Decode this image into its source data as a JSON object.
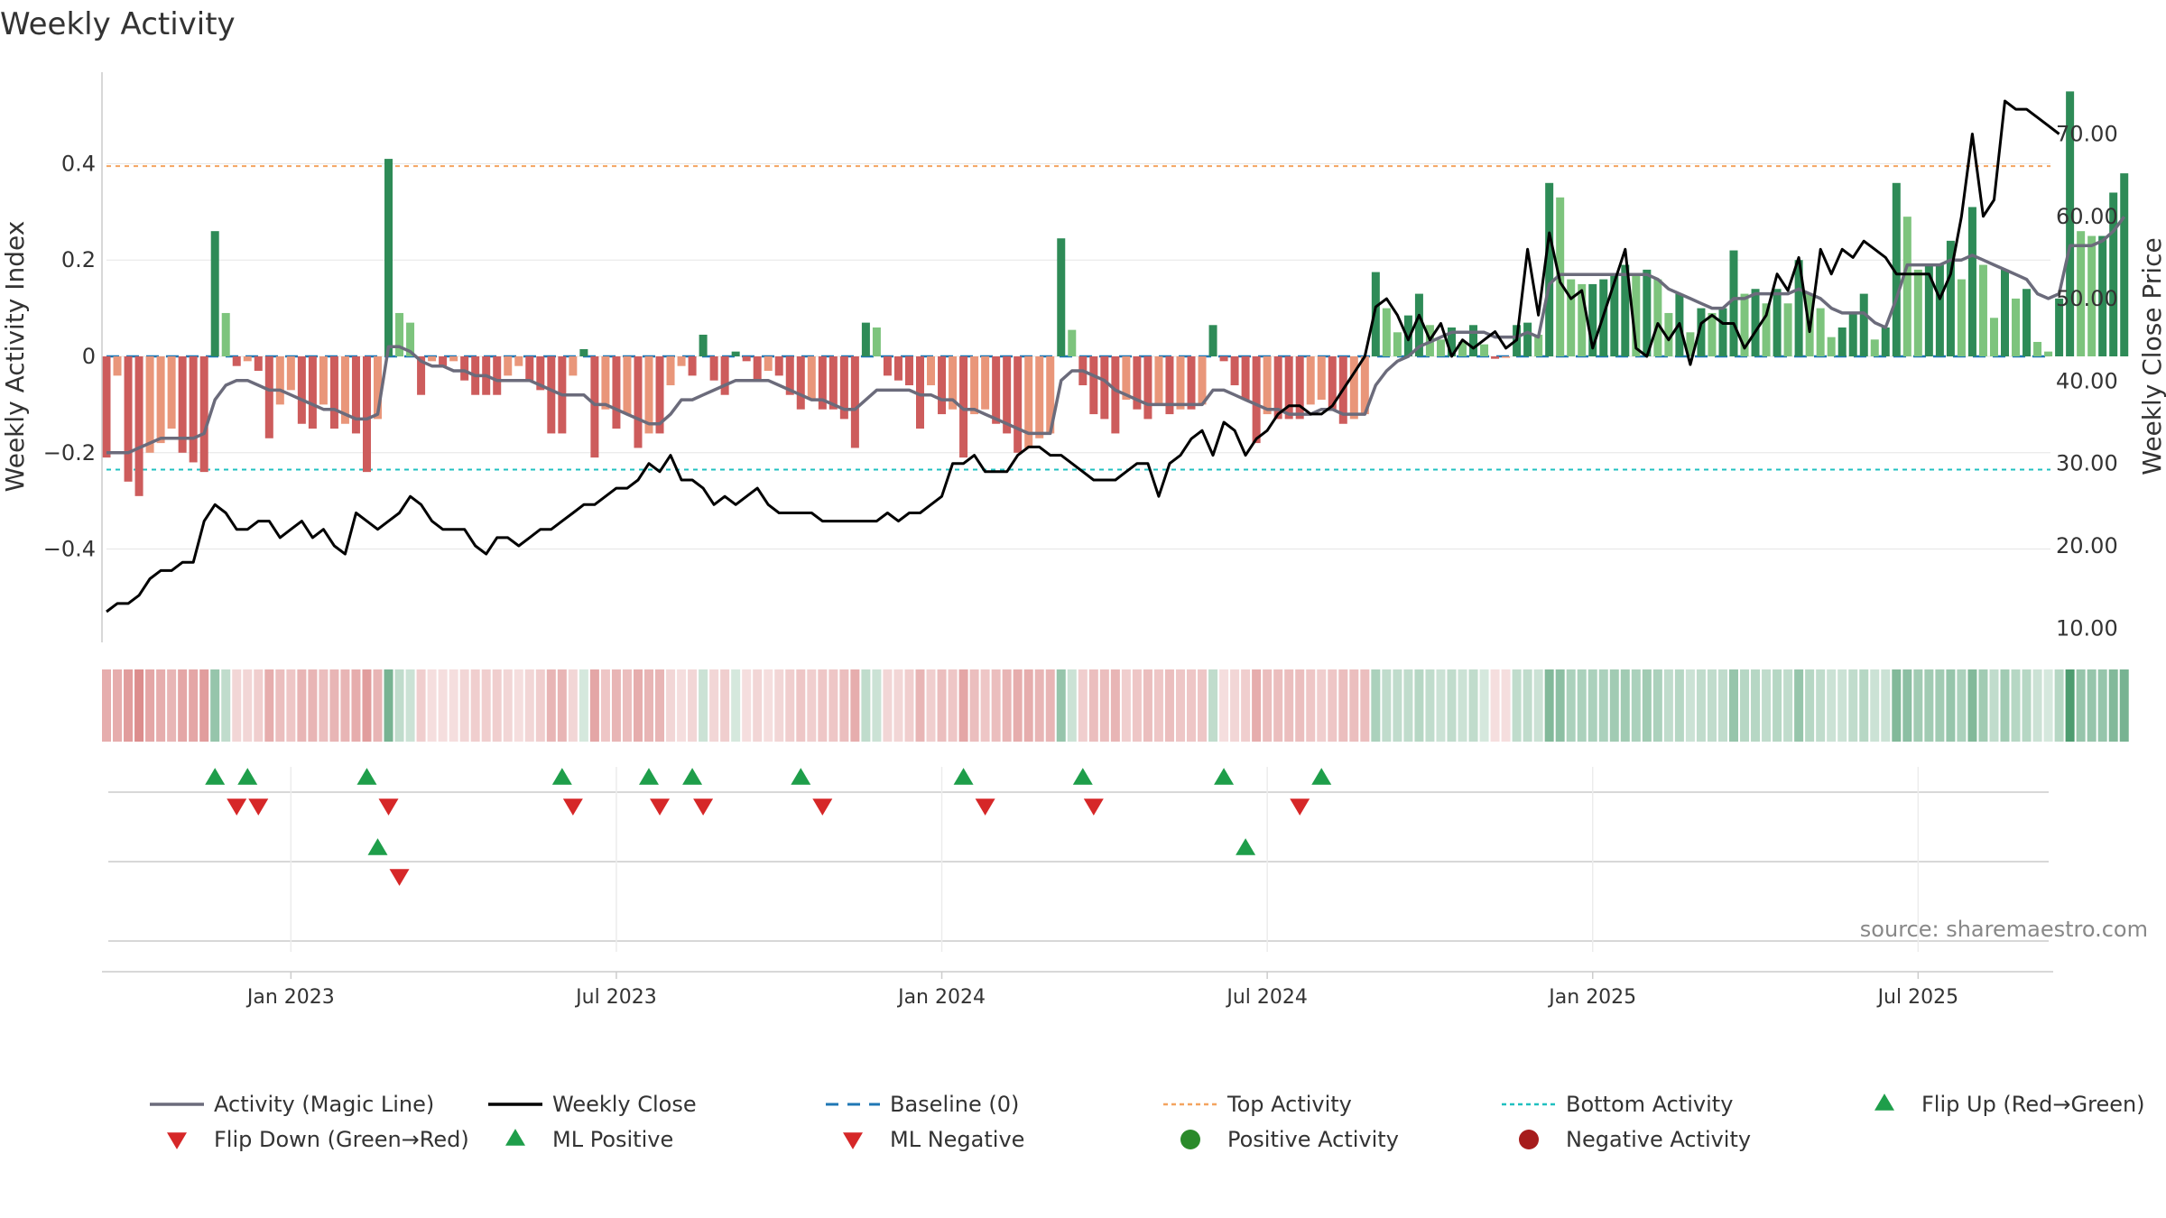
{
  "chart_data": {
    "type": "bar",
    "title": "Weekly Activity",
    "ylabel_left": "Weekly Activity Index",
    "ylabel_right": "Weekly Close Price",
    "source": "source: sharemaestro.com",
    "ylim_left": [
      -0.59,
      0.59
    ],
    "ylim_right": [
      8.5,
      77.5
    ],
    "yticks_left": [
      {
        "value": 0.4,
        "label": "0.4"
      },
      {
        "value": 0.2,
        "label": "0.2"
      },
      {
        "value": 0,
        "label": "0"
      },
      {
        "value": -0.2,
        "label": "−0.2"
      },
      {
        "value": -0.4,
        "label": "−0.4"
      }
    ],
    "yticks_right": [
      {
        "value": 70,
        "label": "70.00"
      },
      {
        "value": 60,
        "label": "60.00"
      },
      {
        "value": 50,
        "label": "50.00"
      },
      {
        "value": 40,
        "label": "40.00"
      },
      {
        "value": 30,
        "label": "30.00"
      },
      {
        "value": 20,
        "label": "20.00"
      },
      {
        "value": 10,
        "label": "10.00"
      }
    ],
    "xticks": [
      {
        "week": 17,
        "label": "Jan 2023"
      },
      {
        "week": 47,
        "label": "Jul 2023"
      },
      {
        "week": 77,
        "label": "Jan 2024"
      },
      {
        "week": 107,
        "label": "Jul 2024"
      },
      {
        "week": 137,
        "label": "Jan 2025"
      },
      {
        "week": 167,
        "label": "Jul 2025"
      }
    ],
    "top_activity": 0.395,
    "bottom_activity": -0.235,
    "baseline": 0,
    "weeks": 181,
    "activity": [
      -0.21,
      -0.04,
      -0.26,
      -0.29,
      -0.2,
      -0.18,
      -0.15,
      -0.2,
      -0.22,
      -0.24,
      0.26,
      0.09,
      -0.02,
      -0.01,
      -0.03,
      -0.17,
      -0.1,
      -0.07,
      -0.14,
      -0.15,
      -0.1,
      -0.15,
      -0.14,
      -0.16,
      -0.24,
      -0.13,
      0.41,
      0.09,
      0.07,
      -0.08,
      -0.01,
      -0.02,
      -0.01,
      -0.05,
      -0.08,
      -0.08,
      -0.08,
      -0.04,
      -0.02,
      -0.05,
      -0.07,
      -0.16,
      -0.16,
      -0.04,
      0.015,
      -0.21,
      -0.11,
      -0.15,
      -0.12,
      -0.19,
      -0.16,
      -0.16,
      -0.06,
      -0.02,
      -0.04,
      0.045,
      -0.05,
      -0.08,
      0.01,
      -0.01,
      -0.05,
      -0.03,
      -0.04,
      -0.08,
      -0.11,
      -0.09,
      -0.11,
      -0.11,
      -0.13,
      -0.19,
      0.07,
      0.06,
      -0.04,
      -0.05,
      -0.06,
      -0.15,
      -0.06,
      -0.12,
      -0.11,
      -0.21,
      -0.12,
      -0.11,
      -0.14,
      -0.16,
      -0.2,
      -0.19,
      -0.17,
      -0.16,
      0.245,
      0.055,
      -0.06,
      -0.12,
      -0.13,
      -0.16,
      -0.09,
      -0.11,
      -0.13,
      -0.1,
      -0.12,
      -0.11,
      -0.11,
      -0.1,
      0.065,
      -0.01,
      -0.06,
      -0.09,
      -0.18,
      -0.12,
      -0.13,
      -0.13,
      -0.13,
      -0.1,
      -0.09,
      -0.11,
      -0.14,
      -0.13,
      -0.12,
      0.175,
      0.1,
      0.05,
      0.085,
      0.13,
      0.065,
      0.035,
      0.06,
      0.03,
      0.065,
      0.025,
      -0.005,
      -0.003,
      0.065,
      0.07,
      0.045,
      0.36,
      0.33,
      0.16,
      0.15,
      0.15,
      0.16,
      0.17,
      0.19,
      0.17,
      0.18,
      0.16,
      0.09,
      0.13,
      0.05,
      0.1,
      0.09,
      0.1,
      0.22,
      0.13,
      0.14,
      0.11,
      0.14,
      0.11,
      0.2,
      0.13,
      0.1,
      0.04,
      0.06,
      0.09,
      0.13,
      0.035,
      0.06,
      0.36,
      0.29,
      0.18,
      0.19,
      0.19,
      0.24,
      0.16,
      0.31,
      0.19,
      0.08,
      0.18,
      0.12,
      0.14,
      0.03,
      0.01,
      0.12,
      0.55,
      0.26,
      0.25,
      0.25,
      0.34,
      0.38
    ],
    "magic_line": [
      -0.2,
      -0.2,
      -0.2,
      -0.19,
      -0.18,
      -0.17,
      -0.17,
      -0.17,
      -0.17,
      -0.16,
      -0.09,
      -0.06,
      -0.05,
      -0.05,
      -0.06,
      -0.07,
      -0.07,
      -0.08,
      -0.09,
      -0.1,
      -0.11,
      -0.11,
      -0.12,
      -0.13,
      -0.13,
      -0.12,
      0.02,
      0.02,
      0.01,
      -0.01,
      -0.02,
      -0.02,
      -0.03,
      -0.03,
      -0.04,
      -0.04,
      -0.05,
      -0.05,
      -0.05,
      -0.05,
      -0.06,
      -0.07,
      -0.08,
      -0.08,
      -0.08,
      -0.1,
      -0.1,
      -0.11,
      -0.12,
      -0.13,
      -0.14,
      -0.14,
      -0.12,
      -0.09,
      -0.09,
      -0.08,
      -0.07,
      -0.06,
      -0.05,
      -0.05,
      -0.05,
      -0.05,
      -0.06,
      -0.07,
      -0.08,
      -0.09,
      -0.09,
      -0.1,
      -0.11,
      -0.11,
      -0.09,
      -0.07,
      -0.07,
      -0.07,
      -0.07,
      -0.08,
      -0.08,
      -0.09,
      -0.09,
      -0.11,
      -0.11,
      -0.12,
      -0.13,
      -0.14,
      -0.15,
      -0.16,
      -0.16,
      -0.16,
      -0.05,
      -0.03,
      -0.03,
      -0.04,
      -0.05,
      -0.07,
      -0.08,
      -0.09,
      -0.1,
      -0.1,
      -0.1,
      -0.1,
      -0.1,
      -0.1,
      -0.07,
      -0.07,
      -0.08,
      -0.09,
      -0.1,
      -0.11,
      -0.11,
      -0.12,
      -0.12,
      -0.12,
      -0.11,
      -0.11,
      -0.12,
      -0.12,
      -0.12,
      -0.06,
      -0.03,
      -0.01,
      0.0,
      0.02,
      0.03,
      0.04,
      0.05,
      0.05,
      0.05,
      0.05,
      0.04,
      0.04,
      0.04,
      0.05,
      0.04,
      0.15,
      0.17,
      0.17,
      0.17,
      0.17,
      0.17,
      0.17,
      0.17,
      0.17,
      0.17,
      0.16,
      0.14,
      0.13,
      0.12,
      0.11,
      0.1,
      0.1,
      0.12,
      0.12,
      0.13,
      0.13,
      0.13,
      0.13,
      0.14,
      0.13,
      0.12,
      0.1,
      0.09,
      0.09,
      0.09,
      0.07,
      0.06,
      0.12,
      0.19,
      0.19,
      0.19,
      0.19,
      0.2,
      0.2,
      0.21,
      0.2,
      0.19,
      0.18,
      0.17,
      0.16,
      0.13,
      0.12,
      0.13,
      0.23,
      0.23,
      0.23,
      0.24,
      0.26,
      0.29
    ],
    "weekly_close": [
      12,
      13,
      13,
      14,
      16,
      17,
      17,
      18,
      18,
      23,
      25,
      24,
      22,
      22,
      23,
      23,
      21,
      22,
      23,
      21,
      22,
      20,
      19,
      24,
      23,
      22,
      23,
      24,
      26,
      25,
      23,
      22,
      22,
      22,
      20,
      19,
      21,
      21,
      20,
      21,
      22,
      22,
      23,
      24,
      25,
      25,
      26,
      27,
      27,
      28,
      30,
      29,
      31,
      28,
      28,
      27,
      25,
      26,
      25,
      26,
      27,
      25,
      24,
      24,
      24,
      24,
      23,
      23,
      23,
      23,
      23,
      23,
      24,
      23,
      24,
      24,
      25,
      26,
      30,
      30,
      31,
      29,
      29,
      29,
      31,
      32,
      32,
      31,
      31,
      30,
      29,
      28,
      28,
      28,
      29,
      30,
      30,
      26,
      30,
      31,
      33,
      34,
      31,
      35,
      34,
      31,
      33,
      34,
      36,
      37,
      37,
      36,
      36,
      37,
      39,
      41,
      43,
      49,
      50,
      48,
      45,
      48,
      45,
      47,
      43,
      45,
      44,
      45,
      46,
      44,
      45,
      56,
      48,
      58,
      52,
      50,
      51,
      44,
      48,
      52,
      56,
      44,
      43,
      47,
      45,
      47,
      42,
      47,
      48,
      47,
      47,
      44,
      46,
      48,
      53,
      51,
      55,
      46,
      56,
      53,
      56,
      55,
      57,
      56,
      55,
      53,
      53,
      53,
      53,
      50,
      53,
      60,
      70,
      60,
      62,
      74,
      73,
      73,
      72,
      71,
      70
    ],
    "heat_intensity": [
      0.5,
      0.5,
      0.6,
      0.7,
      0.55,
      0.5,
      0.45,
      0.55,
      0.55,
      0.6,
      0.5,
      0.3,
      0.25,
      0.25,
      0.3,
      0.5,
      0.4,
      0.35,
      0.45,
      0.45,
      0.4,
      0.45,
      0.45,
      0.5,
      0.6,
      0.45,
      0.65,
      0.3,
      0.25,
      0.3,
      0.2,
      0.2,
      0.2,
      0.25,
      0.3,
      0.3,
      0.3,
      0.25,
      0.2,
      0.25,
      0.3,
      0.45,
      0.45,
      0.25,
      0.2,
      0.55,
      0.35,
      0.45,
      0.4,
      0.5,
      0.45,
      0.45,
      0.25,
      0.2,
      0.25,
      0.25,
      0.25,
      0.3,
      0.2,
      0.2,
      0.25,
      0.2,
      0.25,
      0.3,
      0.35,
      0.3,
      0.35,
      0.35,
      0.4,
      0.5,
      0.3,
      0.25,
      0.25,
      0.25,
      0.3,
      0.45,
      0.3,
      0.4,
      0.35,
      0.55,
      0.4,
      0.35,
      0.4,
      0.45,
      0.5,
      0.5,
      0.45,
      0.45,
      0.5,
      0.25,
      0.3,
      0.4,
      0.4,
      0.45,
      0.3,
      0.35,
      0.4,
      0.35,
      0.4,
      0.35,
      0.35,
      0.35,
      0.3,
      0.2,
      0.25,
      0.3,
      0.5,
      0.4,
      0.4,
      0.4,
      0.4,
      0.35,
      0.3,
      0.35,
      0.4,
      0.4,
      0.4,
      0.4,
      0.3,
      0.3,
      0.3,
      0.35,
      0.3,
      0.25,
      0.3,
      0.25,
      0.3,
      0.2,
      0.2,
      0.2,
      0.3,
      0.3,
      0.25,
      0.6,
      0.55,
      0.4,
      0.4,
      0.4,
      0.4,
      0.45,
      0.45,
      0.4,
      0.45,
      0.4,
      0.3,
      0.35,
      0.25,
      0.3,
      0.3,
      0.3,
      0.5,
      0.35,
      0.35,
      0.3,
      0.35,
      0.3,
      0.5,
      0.35,
      0.3,
      0.25,
      0.25,
      0.3,
      0.35,
      0.25,
      0.25,
      0.6,
      0.55,
      0.45,
      0.45,
      0.45,
      0.5,
      0.4,
      0.6,
      0.45,
      0.3,
      0.45,
      0.35,
      0.35,
      0.25,
      0.2,
      0.35,
      0.85,
      0.5,
      0.5,
      0.5,
      0.6,
      0.65
    ],
    "flip_up_weeks": [
      10,
      13,
      24,
      42,
      50,
      54,
      64,
      79,
      90,
      103,
      112
    ],
    "flip_down_weeks": [
      12,
      14,
      26,
      43,
      51,
      55,
      66,
      81,
      91,
      110
    ],
    "ml_positive_weeks": [
      25,
      105
    ],
    "ml_negative_weeks": [
      27
    ],
    "colors": {
      "pos_strong": "#2e8b57",
      "pos_light": "#7dc47d",
      "neg_strong": "#cd5c5c",
      "neg_light": "#e9967a",
      "magic_line": "#6b6b7b",
      "close": "#000000",
      "baseline": "#1f77b4",
      "top": "#f4a460",
      "bottom": "#20c0c0",
      "flip_up": "#1e9e4a",
      "flip_down": "#d62728",
      "positive_dot": "#2a8a2a",
      "negative_dot": "#a61c1c",
      "grid": "#e6e6e6",
      "axis": "#cccccc",
      "text": "#333333"
    },
    "legend": [
      {
        "key": "magic",
        "label": "Activity (Magic Line)",
        "marker": "line"
      },
      {
        "key": "close",
        "label": "Weekly Close",
        "marker": "line"
      },
      {
        "key": "baseline",
        "label": "Baseline (0)",
        "marker": "dash"
      },
      {
        "key": "top",
        "label": "Top Activity",
        "marker": "dot"
      },
      {
        "key": "bottom",
        "label": "Bottom Activity",
        "marker": "dot"
      },
      {
        "key": "flip_up",
        "label": "Flip Up (Red→Green)",
        "marker": "triangle-up"
      },
      {
        "key": "flip_down",
        "label": "Flip Down (Green→Red)",
        "marker": "triangle-down"
      },
      {
        "key": "ml_pos",
        "label": "ML Positive",
        "marker": "triangle-up"
      },
      {
        "key": "ml_neg",
        "label": "ML Negative",
        "marker": "triangle-down"
      },
      {
        "key": "pos_act",
        "label": "Positive Activity",
        "marker": "circle"
      },
      {
        "key": "neg_act",
        "label": "Negative Activity",
        "marker": "circle"
      }
    ]
  }
}
